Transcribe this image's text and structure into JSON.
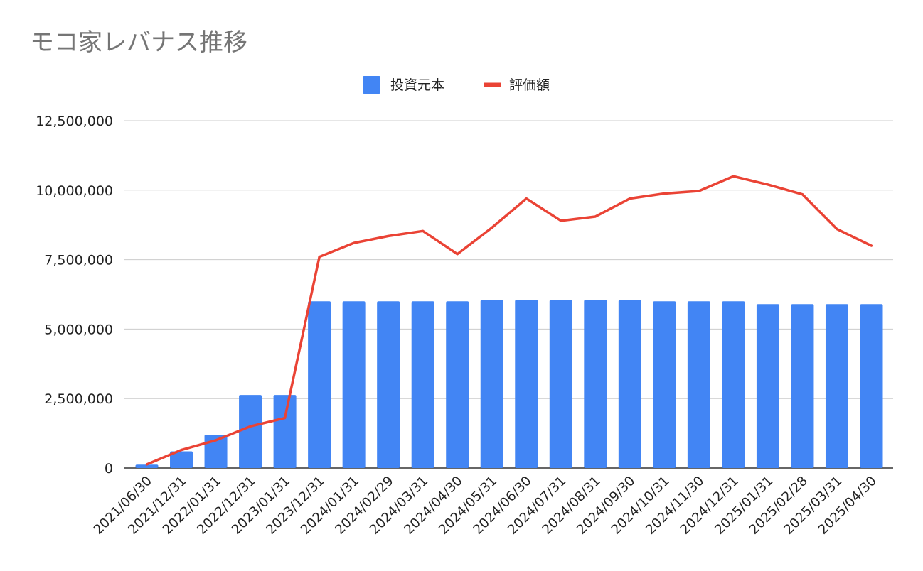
{
  "chart_data": {
    "type": "bar",
    "title": "モコ家レバナス推移",
    "xlabel": "",
    "ylabel": "",
    "ylim": [
      0,
      12500000
    ],
    "yticks": [
      0,
      2500000,
      5000000,
      7500000,
      10000000,
      12500000
    ],
    "ytick_labels": [
      "0",
      "2,500,000",
      "5,000,000",
      "7,500,000",
      "10,000,000",
      "12,500,000"
    ],
    "grid": true,
    "legend_position": "top",
    "categories": [
      "2021/06/30",
      "2021/12/31",
      "2022/01/31",
      "2022/12/31",
      "2023/01/31",
      "2023/12/31",
      "2024/01/31",
      "2024/02/29",
      "2024/03/31",
      "2024/04/30",
      "2024/05/31",
      "2024/06/30",
      "2024/07/31",
      "2024/08/31",
      "2024/09/30",
      "2024/10/31",
      "2024/11/30",
      "2024/12/31",
      "2025/01/31",
      "2025/02/28",
      "2025/03/31",
      "2025/04/30"
    ],
    "series": [
      {
        "name": "投資元本",
        "type": "bar",
        "color": "#4285f4",
        "values": [
          120000,
          600000,
          1200000,
          2630000,
          2630000,
          6000000,
          6000000,
          6000000,
          6000000,
          6000000,
          6050000,
          6050000,
          6050000,
          6050000,
          6050000,
          6000000,
          6000000,
          6000000,
          5900000,
          5900000,
          5900000,
          5900000
        ]
      },
      {
        "name": "評価額",
        "type": "line",
        "color": "#ea4335",
        "values": [
          130000,
          650000,
          1000000,
          1500000,
          1800000,
          7600000,
          8100000,
          8350000,
          8530000,
          7700000,
          8650000,
          9700000,
          8900000,
          9050000,
          9700000,
          9880000,
          9970000,
          10500000,
          10200000,
          9850000,
          8600000,
          8000000
        ]
      }
    ]
  }
}
